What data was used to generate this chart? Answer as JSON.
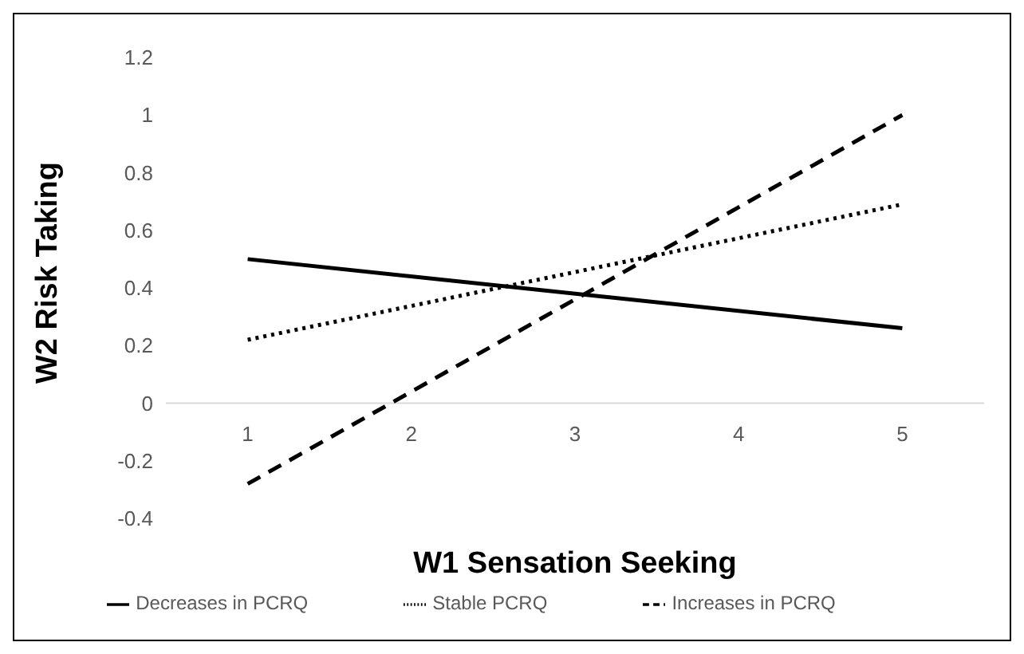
{
  "chart_data": {
    "type": "line",
    "xlabel": "W1 Sensation Seeking",
    "ylabel": "W2 Risk Taking",
    "x": [
      1,
      5
    ],
    "series": [
      {
        "name": "Decreases in PCRQ",
        "color": "#000000",
        "line_style": "solid",
        "values": [
          0.5,
          0.26
        ]
      },
      {
        "name": "Stable PCRQ",
        "color": "#000000",
        "line_style": "dotted",
        "values": [
          0.22,
          0.69
        ]
      },
      {
        "name": "Increases in PCRQ",
        "color": "#000000",
        "line_style": "dashed",
        "values": [
          -0.28,
          1.0
        ]
      }
    ],
    "xlim": [
      0.5,
      5.5
    ],
    "xticks": [
      1,
      2,
      3,
      4,
      5
    ],
    "ylim": [
      -0.4,
      1.2
    ],
    "yticks": [
      -0.4,
      -0.2,
      0,
      0.2,
      0.4,
      0.6,
      0.8,
      1,
      1.2
    ],
    "legend": "bottom",
    "marker": "none"
  }
}
